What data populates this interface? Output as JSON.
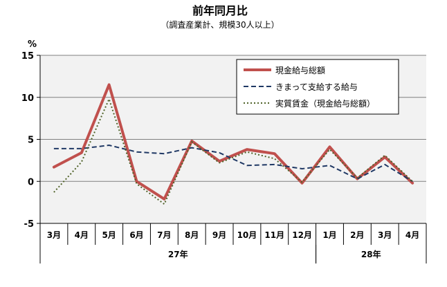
{
  "chart_data": {
    "type": "line",
    "title": "前年同月比",
    "subtitle": "（調査産業計、規模30人以上）",
    "ylabel": "%",
    "ylim": [
      -5,
      15
    ],
    "yticks": [
      -5,
      0,
      5,
      10,
      15
    ],
    "grid": true,
    "legend_position": "top-right",
    "categories": [
      "3月",
      "4月",
      "5月",
      "6月",
      "7月",
      "8月",
      "9月",
      "10月",
      "11月",
      "12月",
      "1月",
      "2月",
      "3月",
      "4月"
    ],
    "groups": [
      {
        "label": "27年",
        "start": 0,
        "end": 9
      },
      {
        "label": "28年",
        "start": 10,
        "end": 13
      }
    ],
    "series": [
      {
        "name": "現金給与総額",
        "color": "#c0504d",
        "style": "solid",
        "values": [
          1.7,
          3.4,
          11.5,
          0.0,
          -2.1,
          4.8,
          2.4,
          3.8,
          3.3,
          -0.2,
          4.1,
          0.3,
          2.9,
          -0.2
        ]
      },
      {
        "name": "きまって支給する給与",
        "color": "#1f3864",
        "style": "dashed",
        "values": [
          3.9,
          3.9,
          4.3,
          3.5,
          3.3,
          4.0,
          3.4,
          1.9,
          2.0,
          1.5,
          1.9,
          0.3,
          2.0,
          0.0
        ]
      },
      {
        "name": "実質賃金（現金給与総額）",
        "color": "#4f6228",
        "style": "dotted",
        "values": [
          -1.3,
          2.3,
          9.8,
          -0.3,
          -2.7,
          4.7,
          2.2,
          3.5,
          2.7,
          -0.1,
          3.8,
          0.4,
          3.1,
          0.0
        ]
      }
    ]
  }
}
